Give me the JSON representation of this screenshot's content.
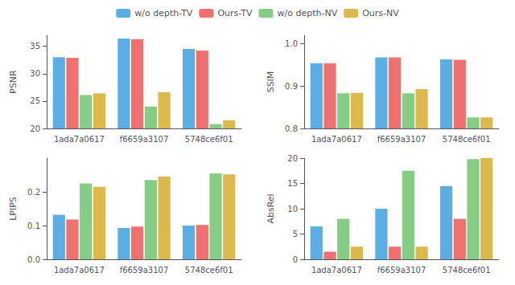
{
  "chart_data": [
    {
      "type": "bar",
      "ylabel": "PSNR",
      "categories": [
        "1ada7a0617",
        "f6659a3107",
        "5748ce6f01"
      ],
      "series": [
        {
          "name": "w/o depth-TV",
          "color": "#5BAEE3",
          "values": [
            33.0,
            36.4,
            34.5
          ]
        },
        {
          "name": "Ours-TV",
          "color": "#F07070",
          "values": [
            32.9,
            36.3,
            34.2
          ]
        },
        {
          "name": "w/o depth-NV",
          "color": "#85CC85",
          "values": [
            26.1,
            24.0,
            20.8
          ]
        },
        {
          "name": "Ours-NV",
          "color": "#DDB84A",
          "values": [
            26.4,
            26.6,
            21.5
          ]
        }
      ],
      "ylim": [
        20,
        37
      ],
      "yticks": [
        20,
        25,
        30,
        35
      ],
      "grid": false,
      "legend": "top"
    },
    {
      "type": "bar",
      "ylabel": "SSIM",
      "categories": [
        "1ada7a0617",
        "f6659a3107",
        "5748ce6f01"
      ],
      "series": [
        {
          "name": "w/o depth-TV",
          "color": "#5BAEE3",
          "values": [
            0.954,
            0.968,
            0.963
          ]
        },
        {
          "name": "Ours-TV",
          "color": "#F07070",
          "values": [
            0.954,
            0.968,
            0.962
          ]
        },
        {
          "name": "w/o depth-NV",
          "color": "#85CC85",
          "values": [
            0.883,
            0.883,
            0.826
          ]
        },
        {
          "name": "Ours-NV",
          "color": "#DDB84A",
          "values": [
            0.884,
            0.893,
            0.826
          ]
        }
      ],
      "ylim": [
        0.8,
        1.02
      ],
      "yticks": [
        0.8,
        0.9,
        {
          "value": 1.0,
          "label": "1.0"
        }
      ],
      "grid": false
    },
    {
      "type": "bar",
      "ylabel": "LPIPS",
      "categories": [
        "1ada7a0617",
        "f6659a3107",
        "5748ce6f01"
      ],
      "series": [
        {
          "name": "w/o depth-TV",
          "color": "#5BAEE3",
          "values": [
            0.132,
            0.093,
            0.1
          ]
        },
        {
          "name": "Ours-TV",
          "color": "#F07070",
          "values": [
            0.118,
            0.097,
            0.102
          ]
        },
        {
          "name": "w/o depth-NV",
          "color": "#85CC85",
          "values": [
            0.225,
            0.235,
            0.255
          ]
        },
        {
          "name": "Ours-NV",
          "color": "#DDB84A",
          "values": [
            0.215,
            0.245,
            0.252
          ]
        }
      ],
      "ylim": [
        0.0,
        0.3
      ],
      "yticks": [
        {
          "value": 0.0,
          "label": "0.0"
        },
        0.1,
        0.2
      ],
      "grid": false
    },
    {
      "type": "bar",
      "ylabel": "AbsRel",
      "categories": [
        "1ada7a0617",
        "f6659a3107",
        "5748ce6f01"
      ],
      "series": [
        {
          "name": "w/o depth-TV",
          "color": "#5BAEE3",
          "values": [
            6.5,
            10.0,
            14.5
          ]
        },
        {
          "name": "Ours-TV",
          "color": "#F07070",
          "values": [
            1.5,
            2.5,
            8.0
          ]
        },
        {
          "name": "w/o depth-NV",
          "color": "#85CC85",
          "values": [
            8.0,
            17.5,
            19.8
          ]
        },
        {
          "name": "Ours-NV",
          "color": "#DDB84A",
          "values": [
            2.5,
            2.5,
            20.0
          ]
        }
      ],
      "ylim": [
        0,
        20
      ],
      "yticks": [
        0,
        5,
        10,
        15,
        20
      ],
      "grid": false
    }
  ]
}
